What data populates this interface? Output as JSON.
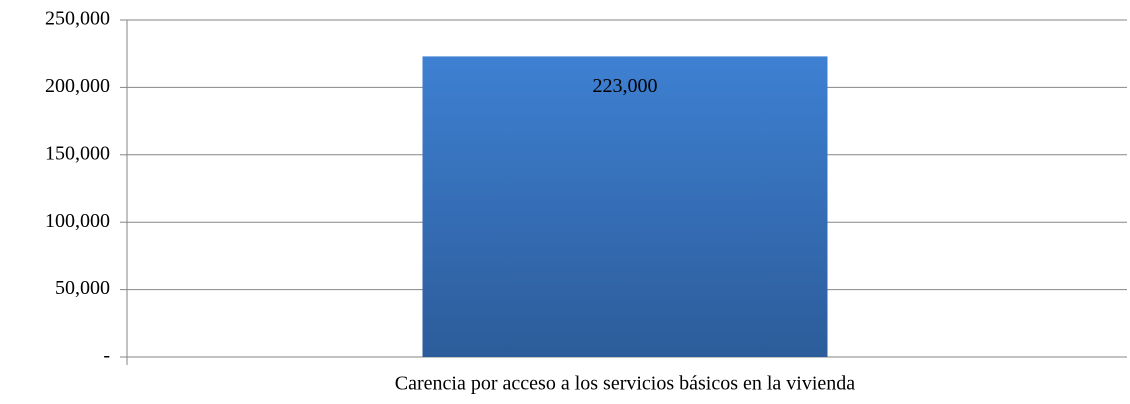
{
  "chart_data": {
    "type": "bar",
    "categories": [
      "Carencia por acceso a los servicios básicos en la vivienda"
    ],
    "values": [
      223000
    ],
    "value_labels": [
      "223,000"
    ],
    "color": "#3a74c0",
    "ylim": [
      0,
      250000
    ],
    "yticks": [
      {
        "value": 0,
        "label": "-"
      },
      {
        "value": 50000,
        "label": "50,000"
      },
      {
        "value": 100000,
        "label": "100,000"
      },
      {
        "value": 150000,
        "label": "150,000"
      },
      {
        "value": 200000,
        "label": "200,000"
      },
      {
        "value": 250000,
        "label": "250,000"
      }
    ],
    "grid": true
  }
}
